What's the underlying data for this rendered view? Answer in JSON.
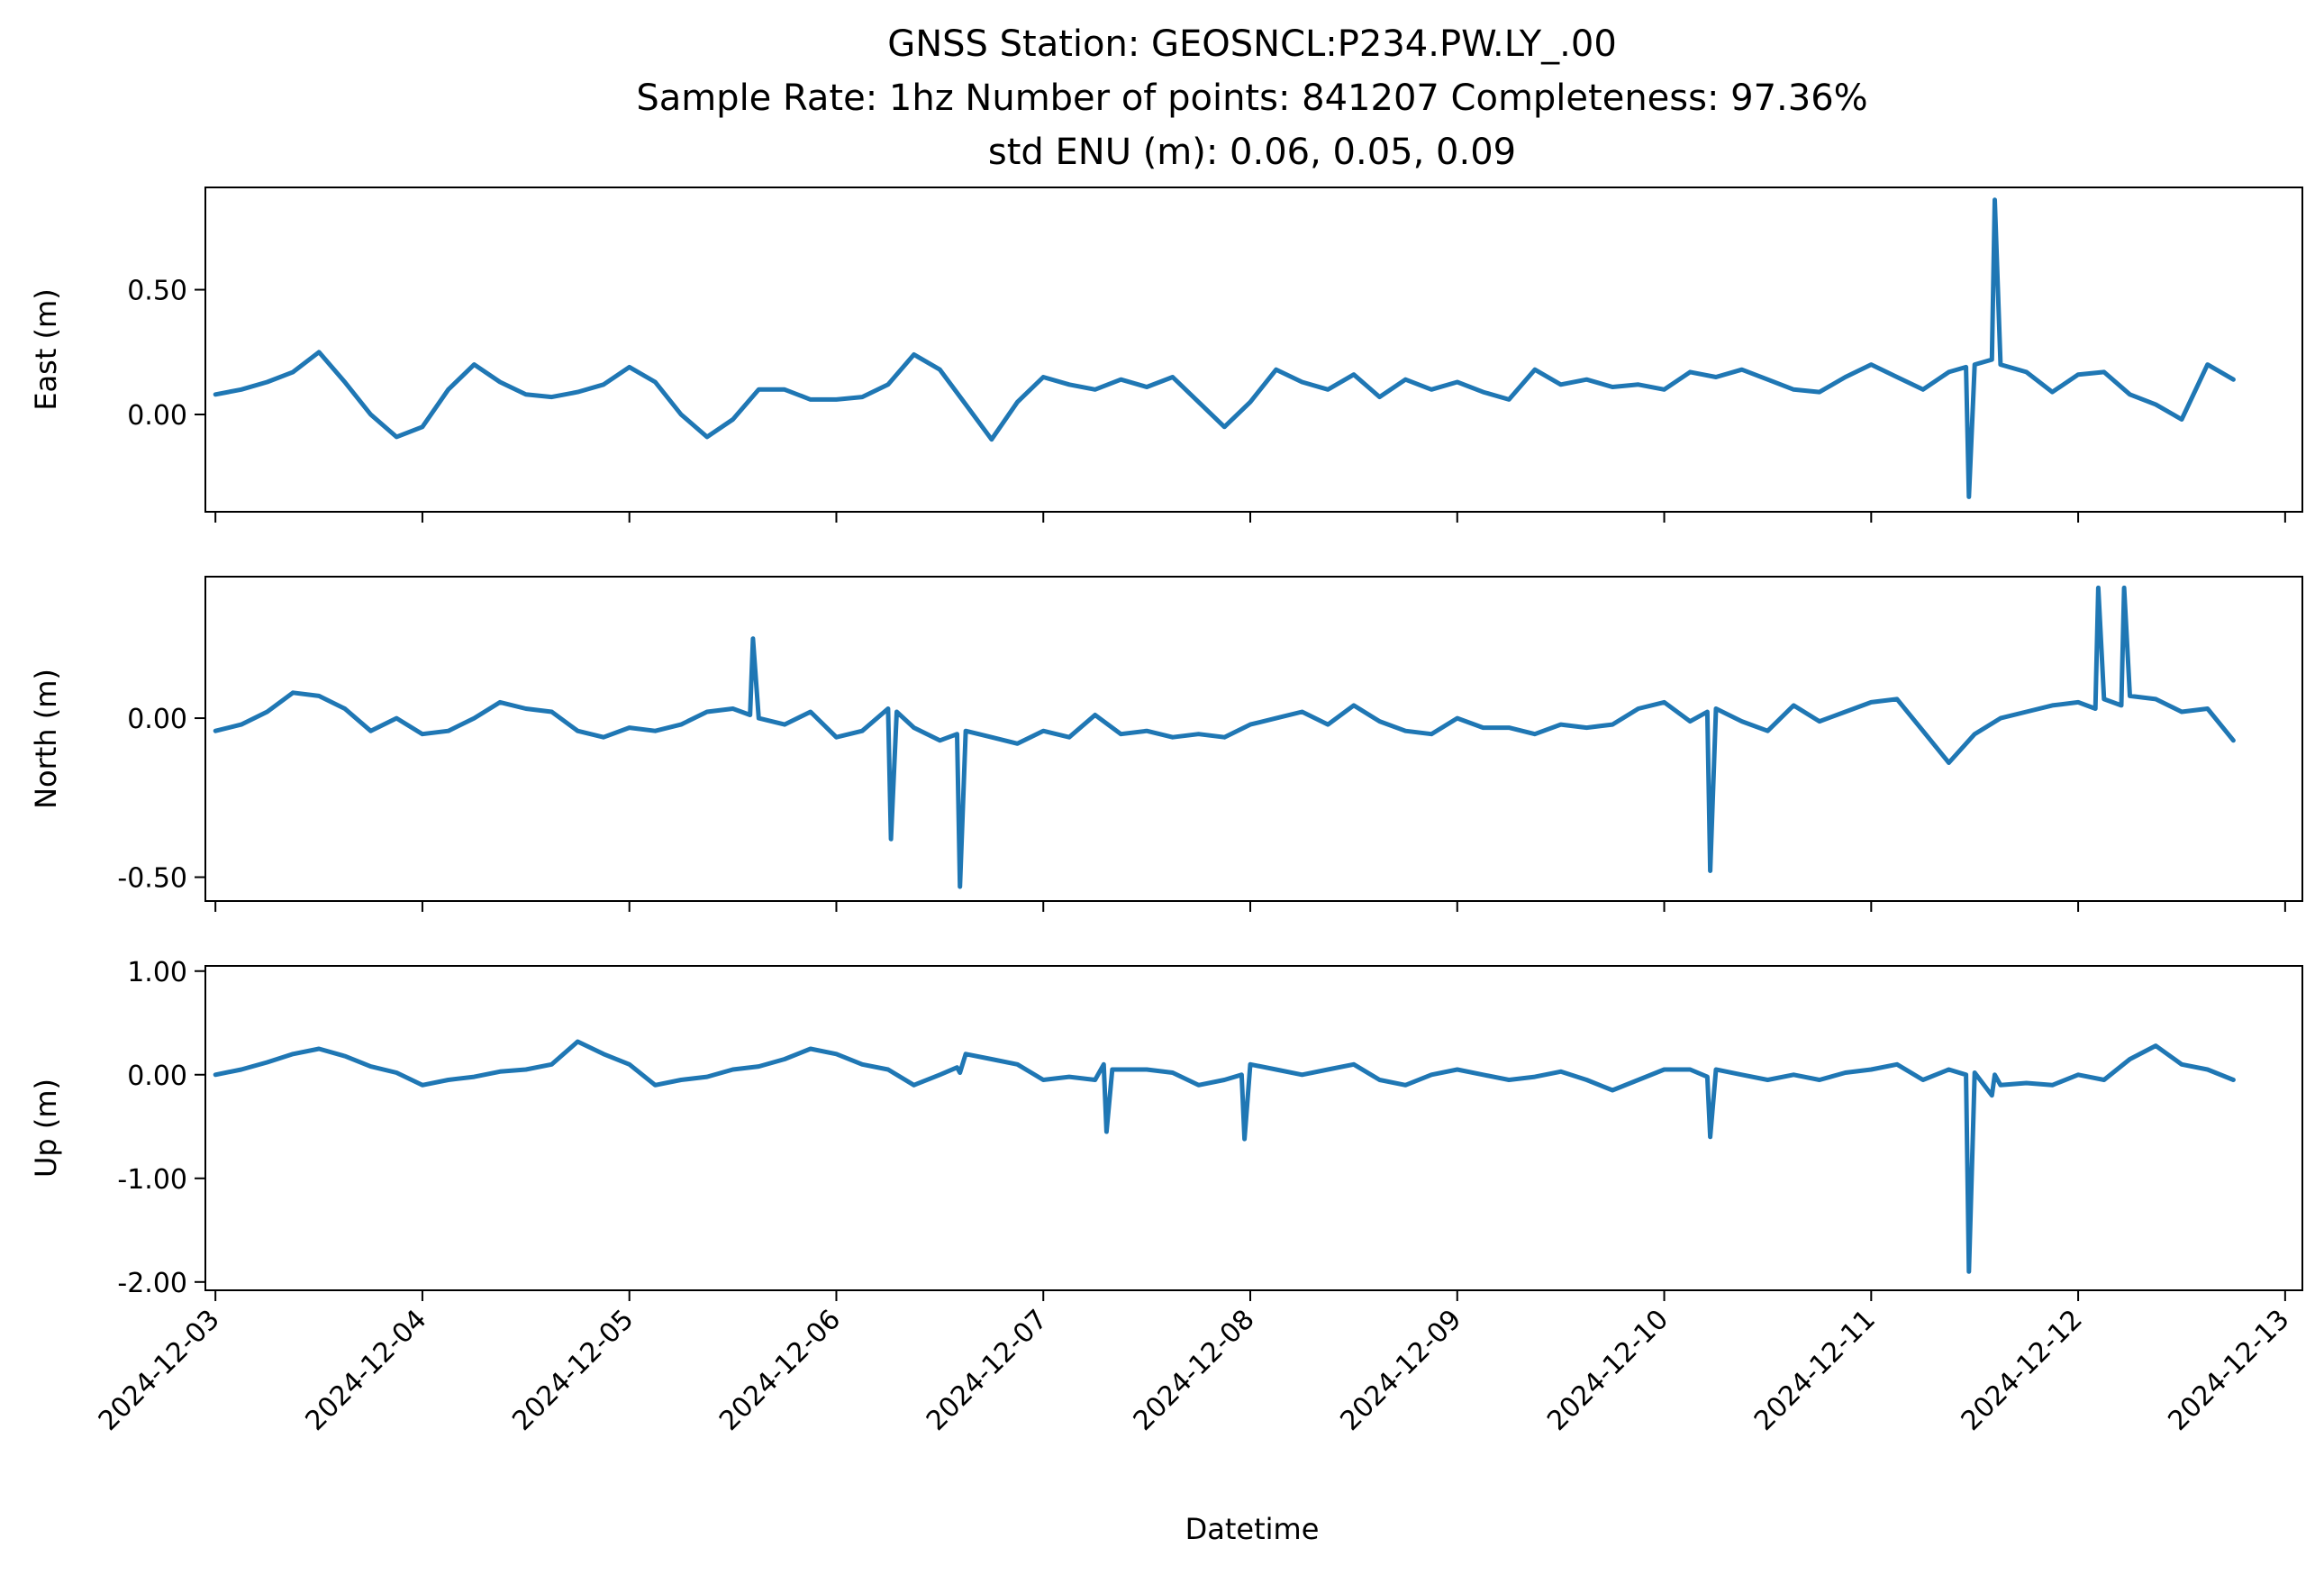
{
  "chart_data": {
    "type": "line",
    "title_lines": [
      "GNSS Station: GEOSNCL:P234.PW.LY_.00",
      "Sample Rate: 1hz   Number of points: 841207    Completeness:  97.36%",
      "std ENU (m):  0.06, 0.05, 0.09"
    ],
    "xlabel": "Datetime",
    "x_ticks": [
      "2024-12-03",
      "2024-12-04",
      "2024-12-05",
      "2024-12-06",
      "2024-12-07",
      "2024-12-08",
      "2024-12-09",
      "2024-12-10",
      "2024-12-11",
      "2024-12-12",
      "2024-12-13"
    ],
    "x_range": [
      "2024-12-02T22:50",
      "2024-12-13T02:00"
    ],
    "series_color": "#1f77b4",
    "grid": false,
    "panels": [
      {
        "ylabel": "East (m)",
        "ylim": [
          -0.39,
          0.91
        ],
        "y_ticks": [
          {
            "value": 0.5,
            "label": "0.50"
          },
          {
            "value": 0.0,
            "label": "0.00"
          }
        ],
        "x": [
          "2024-12-03T00:00",
          "2024-12-03T03:00",
          "2024-12-03T06:00",
          "2024-12-03T09:00",
          "2024-12-03T12:00",
          "2024-12-03T15:00",
          "2024-12-03T18:00",
          "2024-12-03T21:00",
          "2024-12-04T00:00",
          "2024-12-04T03:00",
          "2024-12-04T06:00",
          "2024-12-04T09:00",
          "2024-12-04T12:00",
          "2024-12-04T15:00",
          "2024-12-04T18:00",
          "2024-12-04T21:00",
          "2024-12-05T00:00",
          "2024-12-05T03:00",
          "2024-12-05T06:00",
          "2024-12-05T09:00",
          "2024-12-05T12:00",
          "2024-12-05T15:00",
          "2024-12-05T18:00",
          "2024-12-05T21:00",
          "2024-12-06T00:00",
          "2024-12-06T03:00",
          "2024-12-06T06:00",
          "2024-12-06T09:00",
          "2024-12-06T12:00",
          "2024-12-06T15:00",
          "2024-12-06T18:00",
          "2024-12-06T21:00",
          "2024-12-07T00:00",
          "2024-12-07T03:00",
          "2024-12-07T06:00",
          "2024-12-07T09:00",
          "2024-12-07T12:00",
          "2024-12-07T15:00",
          "2024-12-07T18:00",
          "2024-12-07T21:00",
          "2024-12-08T00:00",
          "2024-12-08T03:00",
          "2024-12-08T06:00",
          "2024-12-08T09:00",
          "2024-12-08T12:00",
          "2024-12-08T15:00",
          "2024-12-08T18:00",
          "2024-12-08T21:00",
          "2024-12-09T00:00",
          "2024-12-09T03:00",
          "2024-12-09T06:00",
          "2024-12-09T09:00",
          "2024-12-09T12:00",
          "2024-12-09T15:00",
          "2024-12-09T18:00",
          "2024-12-09T21:00",
          "2024-12-10T00:00",
          "2024-12-10T03:00",
          "2024-12-10T06:00",
          "2024-12-10T09:00",
          "2024-12-10T12:00",
          "2024-12-10T15:00",
          "2024-12-10T18:00",
          "2024-12-10T21:00",
          "2024-12-11T00:00",
          "2024-12-11T03:00",
          "2024-12-11T06:00",
          "2024-12-11T09:00",
          "2024-12-11T11:00",
          "2024-12-11T11:20",
          "2024-12-11T12:00",
          "2024-12-11T14:00",
          "2024-12-11T14:20",
          "2024-12-11T15:00",
          "2024-12-11T18:00",
          "2024-12-11T21:00",
          "2024-12-12T00:00",
          "2024-12-12T03:00",
          "2024-12-12T06:00",
          "2024-12-12T09:00",
          "2024-12-12T12:00",
          "2024-12-12T15:00",
          "2024-12-12T18:00"
        ],
        "y": [
          0.08,
          0.1,
          0.13,
          0.17,
          0.25,
          0.13,
          0.0,
          -0.09,
          -0.05,
          0.1,
          0.2,
          0.13,
          0.08,
          0.07,
          0.09,
          0.12,
          0.19,
          0.13,
          0.0,
          -0.09,
          -0.02,
          0.1,
          0.1,
          0.06,
          0.06,
          0.07,
          0.12,
          0.24,
          0.18,
          0.04,
          -0.1,
          0.05,
          0.15,
          0.12,
          0.1,
          0.14,
          0.11,
          0.15,
          0.05,
          -0.05,
          0.05,
          0.18,
          0.13,
          0.1,
          0.16,
          0.07,
          0.14,
          0.1,
          0.13,
          0.09,
          0.06,
          0.18,
          0.12,
          0.14,
          0.11,
          0.12,
          0.1,
          0.17,
          0.15,
          0.18,
          0.14,
          0.1,
          0.09,
          0.15,
          0.2,
          0.15,
          0.1,
          0.17,
          0.19,
          -0.33,
          0.2,
          0.22,
          0.86,
          0.2,
          0.17,
          0.09,
          0.16,
          0.17,
          0.08,
          0.04,
          -0.02,
          0.2,
          0.14
        ]
      },
      {
        "ylabel": "North (m)",
        "ylim": [
          -0.575,
          0.445
        ],
        "y_ticks": [
          {
            "value": 0.0,
            "label": "0.00"
          },
          {
            "value": -0.5,
            "label": "-0.50"
          }
        ],
        "x": [
          "2024-12-03T00:00",
          "2024-12-03T03:00",
          "2024-12-03T06:00",
          "2024-12-03T09:00",
          "2024-12-03T12:00",
          "2024-12-03T15:00",
          "2024-12-03T18:00",
          "2024-12-03T21:00",
          "2024-12-04T00:00",
          "2024-12-04T03:00",
          "2024-12-04T06:00",
          "2024-12-04T09:00",
          "2024-12-04T12:00",
          "2024-12-04T15:00",
          "2024-12-04T18:00",
          "2024-12-04T21:00",
          "2024-12-05T00:00",
          "2024-12-05T03:00",
          "2024-12-05T06:00",
          "2024-12-05T09:00",
          "2024-12-05T12:00",
          "2024-12-05T14:00",
          "2024-12-05T14:20",
          "2024-12-05T15:00",
          "2024-12-05T18:00",
          "2024-12-05T21:00",
          "2024-12-06T00:00",
          "2024-12-06T03:00",
          "2024-12-06T06:00",
          "2024-12-06T06:20",
          "2024-12-06T07:00",
          "2024-12-06T09:00",
          "2024-12-06T12:00",
          "2024-12-06T14:00",
          "2024-12-06T14:20",
          "2024-12-06T15:00",
          "2024-12-06T18:00",
          "2024-12-06T21:00",
          "2024-12-07T00:00",
          "2024-12-07T03:00",
          "2024-12-07T06:00",
          "2024-12-07T09:00",
          "2024-12-07T12:00",
          "2024-12-07T15:00",
          "2024-12-07T18:00",
          "2024-12-07T21:00",
          "2024-12-08T00:00",
          "2024-12-08T03:00",
          "2024-12-08T06:00",
          "2024-12-08T09:00",
          "2024-12-08T12:00",
          "2024-12-08T15:00",
          "2024-12-08T18:00",
          "2024-12-08T21:00",
          "2024-12-09T00:00",
          "2024-12-09T03:00",
          "2024-12-09T06:00",
          "2024-12-09T09:00",
          "2024-12-09T12:00",
          "2024-12-09T15:00",
          "2024-12-09T18:00",
          "2024-12-09T21:00",
          "2024-12-10T00:00",
          "2024-12-10T03:00",
          "2024-12-10T05:00",
          "2024-12-10T05:20",
          "2024-12-10T06:00",
          "2024-12-10T09:00",
          "2024-12-10T12:00",
          "2024-12-10T15:00",
          "2024-12-10T18:00",
          "2024-12-10T21:00",
          "2024-12-11T00:00",
          "2024-12-11T03:00",
          "2024-12-11T06:00",
          "2024-12-11T09:00",
          "2024-12-11T12:00",
          "2024-12-11T15:00",
          "2024-12-11T18:00",
          "2024-12-11T21:00",
          "2024-12-12T00:00",
          "2024-12-12T02:00",
          "2024-12-12T02:20",
          "2024-12-12T03:00",
          "2024-12-12T05:00",
          "2024-12-12T05:20",
          "2024-12-12T06:00",
          "2024-12-12T09:00",
          "2024-12-12T12:00",
          "2024-12-12T15:00",
          "2024-12-12T18:00"
        ],
        "y": [
          -0.04,
          -0.02,
          0.02,
          0.08,
          0.07,
          0.03,
          -0.04,
          0.0,
          -0.05,
          -0.04,
          0.0,
          0.05,
          0.03,
          0.02,
          -0.04,
          -0.06,
          -0.03,
          -0.04,
          -0.02,
          0.02,
          0.03,
          0.01,
          0.25,
          0.0,
          -0.02,
          0.02,
          -0.06,
          -0.04,
          0.03,
          -0.38,
          0.02,
          -0.03,
          -0.07,
          -0.05,
          -0.53,
          -0.04,
          -0.06,
          -0.08,
          -0.04,
          -0.06,
          0.01,
          -0.05,
          -0.04,
          -0.06,
          -0.05,
          -0.06,
          -0.02,
          0.0,
          0.02,
          -0.02,
          0.04,
          -0.01,
          -0.04,
          -0.05,
          0.0,
          -0.03,
          -0.03,
          -0.05,
          -0.02,
          -0.03,
          -0.02,
          0.03,
          0.05,
          -0.01,
          0.02,
          -0.48,
          0.03,
          -0.01,
          -0.04,
          0.04,
          -0.01,
          0.02,
          0.05,
          0.06,
          -0.04,
          -0.14,
          -0.05,
          0.0,
          0.02,
          0.04,
          0.05,
          0.03,
          0.41,
          0.06,
          0.04,
          0.41,
          0.07,
          0.06,
          0.02,
          0.03,
          -0.07
        ]
      },
      {
        "ylabel": "Up (m)",
        "ylim": [
          -2.08,
          1.05
        ],
        "y_ticks": [
          {
            "value": 1.0,
            "label": "1.00"
          },
          {
            "value": 0.0,
            "label": "0.00"
          },
          {
            "value": -1.0,
            "label": "-1.00"
          },
          {
            "value": -2.0,
            "label": "-2.00"
          }
        ],
        "x": [
          "2024-12-03T00:00",
          "2024-12-03T03:00",
          "2024-12-03T06:00",
          "2024-12-03T09:00",
          "2024-12-03T12:00",
          "2024-12-03T15:00",
          "2024-12-03T18:00",
          "2024-12-03T21:00",
          "2024-12-04T00:00",
          "2024-12-04T03:00",
          "2024-12-04T06:00",
          "2024-12-04T09:00",
          "2024-12-04T12:00",
          "2024-12-04T15:00",
          "2024-12-04T18:00",
          "2024-12-04T21:00",
          "2024-12-05T00:00",
          "2024-12-05T03:00",
          "2024-12-05T06:00",
          "2024-12-05T09:00",
          "2024-12-05T12:00",
          "2024-12-05T15:00",
          "2024-12-05T18:00",
          "2024-12-05T21:00",
          "2024-12-06T00:00",
          "2024-12-06T03:00",
          "2024-12-06T06:00",
          "2024-12-06T09:00",
          "2024-12-06T12:00",
          "2024-12-06T14:00",
          "2024-12-06T14:20",
          "2024-12-06T15:00",
          "2024-12-06T18:00",
          "2024-12-06T21:00",
          "2024-12-07T00:00",
          "2024-12-07T03:00",
          "2024-12-07T06:00",
          "2024-12-07T07:00",
          "2024-12-07T07:20",
          "2024-12-07T08:00",
          "2024-12-07T12:00",
          "2024-12-07T15:00",
          "2024-12-07T18:00",
          "2024-12-07T21:00",
          "2024-12-07T23:00",
          "2024-12-07T23:20",
          "2024-12-08T00:00",
          "2024-12-08T03:00",
          "2024-12-08T06:00",
          "2024-12-08T09:00",
          "2024-12-08T12:00",
          "2024-12-08T15:00",
          "2024-12-08T18:00",
          "2024-12-08T21:00",
          "2024-12-09T00:00",
          "2024-12-09T03:00",
          "2024-12-09T06:00",
          "2024-12-09T09:00",
          "2024-12-09T12:00",
          "2024-12-09T15:00",
          "2024-12-09T18:00",
          "2024-12-09T21:00",
          "2024-12-10T00:00",
          "2024-12-10T03:00",
          "2024-12-10T05:00",
          "2024-12-10T05:20",
          "2024-12-10T06:00",
          "2024-12-10T09:00",
          "2024-12-10T12:00",
          "2024-12-10T15:00",
          "2024-12-10T18:00",
          "2024-12-10T21:00",
          "2024-12-11T00:00",
          "2024-12-11T03:00",
          "2024-12-11T06:00",
          "2024-12-11T09:00",
          "2024-12-11T11:00",
          "2024-12-11T11:20",
          "2024-12-11T12:00",
          "2024-12-11T14:00",
          "2024-12-11T14:20",
          "2024-12-11T15:00",
          "2024-12-11T18:00",
          "2024-12-11T21:00",
          "2024-12-12T00:00",
          "2024-12-12T03:00",
          "2024-12-12T06:00",
          "2024-12-12T09:00",
          "2024-12-12T12:00",
          "2024-12-12T15:00",
          "2024-12-12T18:00"
        ],
        "y": [
          0.0,
          0.05,
          0.12,
          0.2,
          0.25,
          0.18,
          0.08,
          0.02,
          -0.1,
          -0.05,
          -0.02,
          0.03,
          0.05,
          0.1,
          0.32,
          0.2,
          0.1,
          -0.1,
          -0.05,
          -0.02,
          0.05,
          0.08,
          0.15,
          0.25,
          0.2,
          0.1,
          0.05,
          -0.1,
          0.0,
          0.07,
          0.02,
          0.2,
          0.15,
          0.1,
          -0.05,
          -0.02,
          -0.05,
          0.1,
          -0.55,
          0.05,
          0.05,
          0.02,
          -0.1,
          -0.05,
          0.0,
          -0.62,
          0.1,
          0.05,
          0.0,
          0.05,
          0.1,
          -0.05,
          -0.1,
          0.0,
          0.05,
          0.0,
          -0.05,
          -0.02,
          0.03,
          -0.05,
          -0.15,
          -0.05,
          0.05,
          0.05,
          -0.02,
          -0.6,
          0.05,
          0.0,
          -0.05,
          0.0,
          -0.05,
          0.02,
          0.05,
          0.1,
          -0.05,
          0.05,
          0.0,
          -1.9,
          0.02,
          -0.2,
          0.0,
          -0.1,
          -0.08,
          -0.1,
          0.0,
          -0.05,
          0.15,
          0.28,
          0.1,
          0.05,
          -0.05
        ]
      }
    ]
  }
}
